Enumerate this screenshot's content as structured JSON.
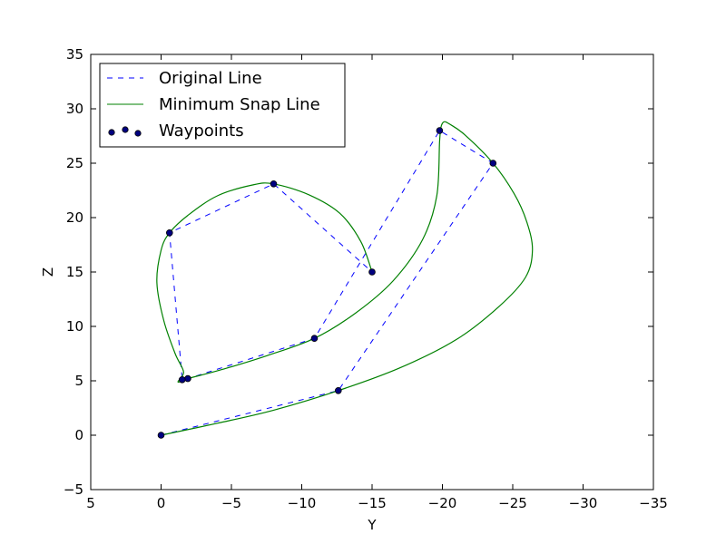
{
  "chart_data": {
    "type": "line",
    "title": "",
    "xlabel": "Y",
    "ylabel": "Z",
    "xlim": [
      5,
      -35
    ],
    "ylim": [
      -5,
      35
    ],
    "x_inverted": true,
    "grid": false,
    "legend_placement": "top-left",
    "xticks": [
      5,
      0,
      -5,
      -10,
      -15,
      -20,
      -25,
      -30,
      -35
    ],
    "xtick_labels": [
      "5",
      "0",
      "−5",
      "−10",
      "−15",
      "−20",
      "−25",
      "−30",
      "−35"
    ],
    "yticks": [
      -5,
      0,
      5,
      10,
      15,
      20,
      25,
      30,
      35
    ],
    "ytick_labels": [
      "−5",
      "0",
      "5",
      "10",
      "15",
      "20",
      "25",
      "30",
      "35"
    ],
    "series": [
      {
        "name": "Original Line",
        "style": "dashed",
        "color": "#0000ff",
        "points": [
          [
            0,
            0
          ],
          [
            -12.6,
            4.1
          ],
          [
            -23.6,
            25.0
          ],
          [
            -19.8,
            28.0
          ],
          [
            -10.9,
            8.9
          ],
          [
            -1.9,
            5.2
          ],
          [
            -1.5,
            5.1
          ],
          [
            -0.6,
            18.6
          ],
          [
            -8.0,
            23.1
          ],
          [
            -15.0,
            15.0
          ]
        ]
      },
      {
        "name": "Minimum Snap Line",
        "style": "solid",
        "color": "#008000",
        "points": [
          [
            0,
            0
          ],
          [
            -4,
            1.1
          ],
          [
            -8,
            2.3
          ],
          [
            -12.6,
            4.1
          ],
          [
            -17,
            6.2
          ],
          [
            -21,
            8.8
          ],
          [
            -24,
            11.8
          ],
          [
            -25.9,
            14.5
          ],
          [
            -26.4,
            17.0
          ],
          [
            -26,
            19.6
          ],
          [
            -25.1,
            22.2
          ],
          [
            -23.6,
            25.0
          ],
          [
            -21.6,
            27.6
          ],
          [
            -20.5,
            28.6
          ],
          [
            -20.1,
            28.8
          ],
          [
            -19.9,
            28.3
          ],
          [
            -19.8,
            27.0
          ],
          [
            -19.6,
            22.0
          ],
          [
            -18.6,
            18.0
          ],
          [
            -16.5,
            14.2
          ],
          [
            -13.8,
            11.2
          ],
          [
            -10.9,
            8.9
          ],
          [
            -7.5,
            7.3
          ],
          [
            -4.5,
            6.1
          ],
          [
            -1.9,
            5.2
          ],
          [
            -1.2,
            4.9
          ],
          [
            -1.6,
            5.8
          ],
          [
            -1.0,
            7.5
          ],
          [
            -0.2,
            10.5
          ],
          [
            0.3,
            14.0
          ],
          [
            0,
            17.0
          ],
          [
            -0.6,
            18.6
          ],
          [
            -1.9,
            20.2
          ],
          [
            -4.0,
            22.0
          ],
          [
            -6.5,
            23.0
          ],
          [
            -8.0,
            23.1
          ],
          [
            -10.5,
            22.1
          ],
          [
            -12.7,
            20.4
          ],
          [
            -14.2,
            17.8
          ],
          [
            -15.0,
            15.0
          ]
        ]
      },
      {
        "name": "Waypoints",
        "style": "markers",
        "color": "#000080",
        "points": [
          [
            0,
            0
          ],
          [
            -12.6,
            4.1
          ],
          [
            -23.6,
            25.0
          ],
          [
            -19.8,
            28.0
          ],
          [
            -10.9,
            8.9
          ],
          [
            -1.9,
            5.2
          ],
          [
            -1.5,
            5.1
          ],
          [
            -0.6,
            18.6
          ],
          [
            -8.0,
            23.1
          ],
          [
            -15.0,
            15.0
          ]
        ]
      }
    ]
  }
}
